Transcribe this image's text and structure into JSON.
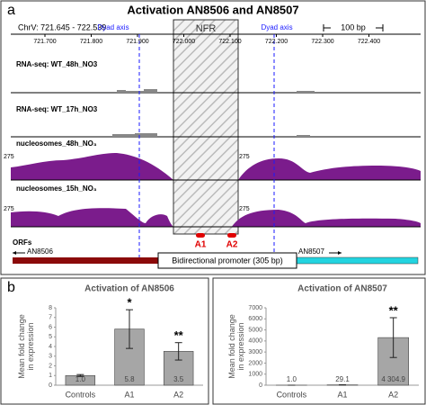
{
  "panel_a": {
    "label": "a",
    "title": "Activation AN8506 and AN8507",
    "coords": "ChrV: 721.645 - 722.539",
    "scale": "100 bp",
    "axis_ticks": [
      "721.700",
      "721.800",
      "721.900",
      "722.000",
      "722.100",
      "722.200",
      "722.300",
      "722.400"
    ],
    "dyad_labels": [
      "Dyad axis",
      "Dyad axis"
    ],
    "nfr": "NFR",
    "tracks": [
      {
        "label": "RNA-seq: WT_48h_NO3"
      },
      {
        "label": "RNA-seq: WT_17h_NO3"
      },
      {
        "label": "nucleosomes_48h_NO₃",
        "ymax": 275
      },
      {
        "label": "nucleosomes_15h_NO₃",
        "ymax": 275
      }
    ],
    "orfs_label": "ORFs",
    "genes": [
      "AN8506",
      "AN8507"
    ],
    "promoter": "Bidirectional promoter (305 bp)",
    "motifs": [
      "A1",
      "A2"
    ]
  },
  "panel_b": {
    "label": "b"
  },
  "chart_data": [
    {
      "type": "bar",
      "title": "Activation of AN8506",
      "y_label": "Mean fold change in expression",
      "categories": [
        "Controls",
        "A1",
        "A2"
      ],
      "values": [
        1.0,
        5.8,
        3.5
      ],
      "value_labels": [
        "1.0",
        "5.8",
        "3.5"
      ],
      "errors": [
        0.1,
        2.0,
        0.9
      ],
      "significance": [
        null,
        "*",
        "**"
      ],
      "color": "#a6a6a6",
      "ylim": [
        0,
        8
      ],
      "yticks": [
        0,
        1,
        2,
        3,
        4,
        5,
        6,
        7,
        8
      ]
    },
    {
      "type": "bar",
      "title": "Activation of AN8507",
      "y_label": "Mean fold change in expression",
      "categories": [
        "Controls",
        "A1",
        "A2"
      ],
      "values": [
        1.0,
        29.1,
        4304.9
      ],
      "value_labels": [
        "1.0",
        "29.1",
        "4 304.9"
      ],
      "errors": [
        0.1,
        2,
        1800
      ],
      "significance": [
        null,
        null,
        "**"
      ],
      "color": "#a6a6a6",
      "ylim": [
        0,
        7000
      ],
      "yticks": [
        0,
        1000,
        2000,
        3000,
        4000,
        5000,
        6000,
        7000
      ]
    }
  ]
}
